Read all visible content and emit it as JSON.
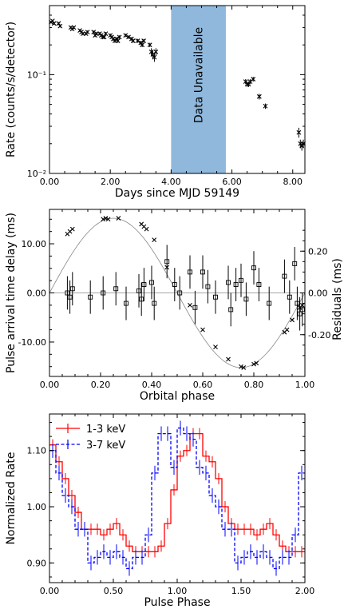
{
  "chart_data": [
    {
      "type": "scatter",
      "xlabel": "Days since MJD 59149",
      "ylabel": "Rate (counts/s/detector)",
      "xlim": [
        0,
        8.4
      ],
      "ylim": [
        0.01,
        0.5
      ],
      "yscale": "log",
      "x_ticks": [
        0,
        2,
        4,
        6,
        8
      ],
      "x_tick_labels": [
        "0.00",
        "2.00",
        "4.00",
        "6.00",
        "8.00"
      ],
      "y_ticks": [
        0.01,
        0.1
      ],
      "y_tick_labels": [
        "10⁻²",
        "10⁻¹"
      ],
      "annotation": "Data Unavailable",
      "shaded_region": [
        4.0,
        5.8
      ],
      "shade_color": "#8fb8dc",
      "marker_color": "#000000",
      "series": [
        {
          "x": [
            0.05,
            0.1,
            0.15,
            0.3,
            0.35,
            0.7,
            0.75,
            0.8,
            1.0,
            1.05,
            1.1,
            1.2,
            1.25,
            1.45,
            1.5,
            1.55,
            1.65,
            1.7,
            1.75,
            1.8,
            1.85,
            2.0,
            2.05,
            2.1,
            2.15,
            2.2,
            2.25,
            2.3,
            2.5,
            2.6,
            2.7,
            2.75,
            2.9,
            3.0,
            3.05,
            3.1,
            3.3,
            3.35,
            3.4,
            3.45,
            3.5,
            6.45,
            6.5,
            6.55,
            6.6,
            6.7,
            6.9,
            7.1,
            8.2,
            8.25,
            8.3,
            8.35
          ],
          "y": [
            0.34,
            0.35,
            0.33,
            0.33,
            0.31,
            0.3,
            0.29,
            0.3,
            0.28,
            0.27,
            0.26,
            0.26,
            0.27,
            0.27,
            0.25,
            0.26,
            0.26,
            0.25,
            0.24,
            0.24,
            0.26,
            0.25,
            0.24,
            0.23,
            0.22,
            0.23,
            0.22,
            0.24,
            0.25,
            0.24,
            0.23,
            0.22,
            0.22,
            0.21,
            0.2,
            0.22,
            0.2,
            0.17,
            0.16,
            0.15,
            0.17,
            0.085,
            0.08,
            0.08,
            0.085,
            0.09,
            0.06,
            0.048,
            0.026,
            0.02,
            0.019,
            0.02
          ],
          "yerr": [
            0.01,
            0.01,
            0.01,
            0.01,
            0.01,
            0.01,
            0.01,
            0.01,
            0.01,
            0.01,
            0.01,
            0.01,
            0.01,
            0.01,
            0.01,
            0.01,
            0.01,
            0.01,
            0.01,
            0.01,
            0.01,
            0.01,
            0.01,
            0.01,
            0.01,
            0.01,
            0.01,
            0.01,
            0.01,
            0.01,
            0.01,
            0.01,
            0.01,
            0.01,
            0.01,
            0.01,
            0.01,
            0.015,
            0.015,
            0.015,
            0.015,
            0.005,
            0.005,
            0.005,
            0.005,
            0.005,
            0.004,
            0.003,
            0.003,
            0.002,
            0.002,
            0.002
          ]
        }
      ]
    },
    {
      "type": "scatter",
      "xlabel": "Orbital phase",
      "ylabel": "Pulse arrival time delay (ms)",
      "y2label": "Residuals (ms)",
      "xlim": [
        0,
        1
      ],
      "ylim": [
        -17,
        17
      ],
      "y2lim": [
        -0.4,
        0.4
      ],
      "x_ticks": [
        0,
        0.2,
        0.4,
        0.6,
        0.8,
        1.0
      ],
      "x_tick_labels": [
        "0.00",
        "0.20",
        "0.40",
        "0.60",
        "0.80",
        "1.00"
      ],
      "y_ticks": [
        -10,
        0,
        10
      ],
      "y_tick_labels": [
        "-10.00",
        "0.00",
        "10.00"
      ],
      "y2_ticks": [
        -0.2,
        0,
        0.2
      ],
      "y2_tick_labels": [
        "-0.20",
        "0.00",
        "0.20"
      ],
      "model_amplitude": 15.2,
      "model_peak_phase": 0.25,
      "model_color": "#888888",
      "delays": {
        "x": [
          0.07,
          0.08,
          0.09,
          0.21,
          0.22,
          0.23,
          0.27,
          0.36,
          0.37,
          0.38,
          0.41,
          0.46,
          0.55,
          0.6,
          0.65,
          0.7,
          0.75,
          0.76,
          0.8,
          0.81,
          0.92,
          0.93,
          0.95,
          0.98,
          0.99
        ],
        "y": [
          12,
          12.5,
          13,
          15,
          15.2,
          15,
          15.2,
          14,
          13.5,
          13,
          10.8,
          5.2,
          -2.5,
          -7.5,
          -11,
          -13.5,
          -15,
          -15.2,
          -14.5,
          -14.3,
          -8,
          -7.5,
          -5.5,
          -3,
          -2.5
        ]
      },
      "residuals": {
        "x": [
          0.07,
          0.08,
          0.09,
          0.16,
          0.21,
          0.26,
          0.3,
          0.35,
          0.36,
          0.37,
          0.4,
          0.41,
          0.46,
          0.49,
          0.51,
          0.55,
          0.57,
          0.6,
          0.62,
          0.65,
          0.7,
          0.71,
          0.73,
          0.75,
          0.77,
          0.8,
          0.82,
          0.86,
          0.92,
          0.94,
          0.96,
          0.97,
          0.98,
          0.99
        ],
        "y": [
          0,
          -0.02,
          0.02,
          -0.02,
          0,
          0.02,
          -0.05,
          0.01,
          -0.03,
          0.04,
          0.05,
          -0.05,
          0.15,
          0.04,
          0,
          0.1,
          -0.07,
          0.1,
          0.03,
          -0.02,
          0.05,
          -0.08,
          0.04,
          0.06,
          -0.03,
          0.12,
          0.04,
          -0.05,
          0.08,
          -0.02,
          0.14,
          -0.05,
          -0.1,
          -0.08
        ],
        "yerr": [
          0.08,
          0.08,
          0.08,
          0.08,
          0.08,
          0.08,
          0.08,
          0.08,
          0.08,
          0.08,
          0.08,
          0.08,
          0.08,
          0.08,
          0.08,
          0.08,
          0.08,
          0.08,
          0.08,
          0.08,
          0.08,
          0.08,
          0.08,
          0.08,
          0.08,
          0.08,
          0.08,
          0.08,
          0.08,
          0.08,
          0.08,
          0.08,
          0.08,
          0.08
        ]
      }
    },
    {
      "type": "line",
      "xlabel": "Pulse Phase",
      "ylabel": "Normalized Rate",
      "xlim": [
        0,
        2
      ],
      "ylim": [
        0.865,
        1.165
      ],
      "x_ticks": [
        0,
        0.5,
        1.0,
        1.5,
        2.0
      ],
      "x_tick_labels": [
        "0.00",
        "0.50",
        "1.00",
        "1.50",
        "2.00"
      ],
      "y_ticks": [
        0.9,
        1.0,
        1.1
      ],
      "y_tick_labels": [
        "0.90",
        "1.00",
        "1.10"
      ],
      "legend": "top-left",
      "bin_width": 0.05,
      "series": [
        {
          "name": "1-3 keV",
          "color": "#ff0000",
          "linestyle": "solid",
          "values": [
            1.11,
            1.08,
            1.05,
            1.02,
            0.99,
            0.96,
            0.96,
            0.96,
            0.95,
            0.96,
            0.97,
            0.95,
            0.93,
            0.92,
            0.92,
            0.92,
            0.92,
            0.93,
            0.97,
            1.03,
            1.09,
            1.1,
            1.13,
            1.13,
            1.09,
            1.08,
            1.05,
            1.0,
            0.97,
            0.96,
            0.96,
            0.96,
            0.95,
            0.96,
            0.97,
            0.95,
            0.93,
            0.92,
            0.92,
            0.92
          ],
          "error": 0.01
        },
        {
          "name": "3-7 keV",
          "color": "#0000ff",
          "linestyle": "dashed",
          "values": [
            1.1,
            1.06,
            1.02,
            1.0,
            0.96,
            0.96,
            0.9,
            0.91,
            0.92,
            0.91,
            0.92,
            0.91,
            0.89,
            0.91,
            0.91,
            0.95,
            1.06,
            1.13,
            1.13,
            1.07,
            1.14,
            1.13,
            1.12,
            1.07,
            1.06,
            1.02,
            1.0,
            0.96,
            0.96,
            0.9,
            0.91,
            0.92,
            0.91,
            0.92,
            0.91,
            0.89,
            0.91,
            0.91,
            0.95,
            1.06
          ],
          "error": 0.013
        }
      ]
    }
  ]
}
